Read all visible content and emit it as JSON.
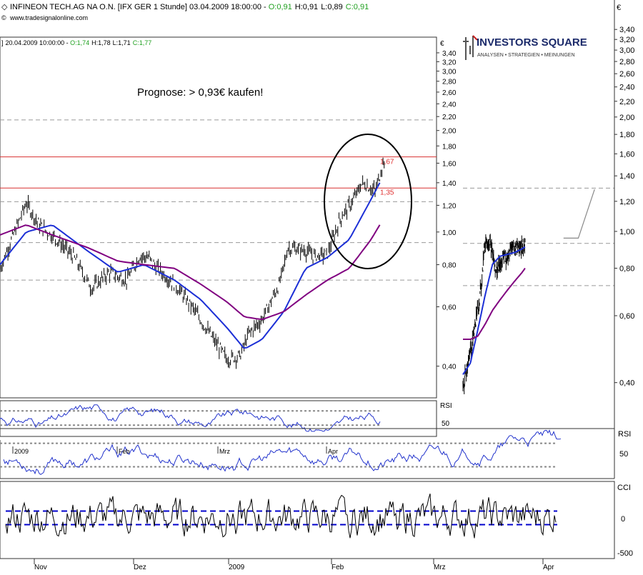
{
  "header": {
    "title": "INFINEON TECH.AG NA O.N. [IFX GER  1 Stunde] 03.04.2009 18:00:00 - ",
    "o": "O:0,91",
    "h": "H:0,91",
    "l": "L:0,89",
    "c": "C:0,91",
    "source": "www.tradesignalonline.com",
    "currency": "€"
  },
  "logo": {
    "name": "INVESTORS SQUARE",
    "tagline": "ANALYSEN • STRATEGIEN • MEINUNGEN"
  },
  "colors": {
    "price": "#000000",
    "ma_fast": "#1c2fd6",
    "ma_slow": "#800080",
    "hline": "#d83030",
    "level_label": "#e03030",
    "open_label": "#20a020",
    "close_label": "#20a020",
    "rsi": "#2233cc",
    "cci_band": "#0000cc",
    "dashed": "#999999"
  },
  "chart_data": [
    {
      "type": "line",
      "id": "main-hourly",
      "scale": "log",
      "ylim": [
        0.35,
        3.5
      ],
      "yticks": [
        "3,40",
        "3,20",
        "3,00",
        "2,80",
        "2,60",
        "2,40",
        "2,20",
        "2,00",
        "1,80",
        "1,60",
        "1,40",
        "1,20",
        "1,00",
        "0,80",
        "0,60",
        "0,40"
      ],
      "xticks": [
        "Nov",
        "Dez",
        "2009",
        "Feb",
        "Mrz",
        "Apr"
      ],
      "series": [
        {
          "kind": "price",
          "x": [
            0,
            0.04,
            0.06,
            0.09,
            0.13,
            0.17,
            0.21,
            0.25,
            0.29,
            0.32,
            0.34,
            0.36,
            0.4,
            0.44,
            0.48,
            0.52,
            0.55,
            0.57,
            0.6,
            0.64,
            0.66,
            0.7,
            0.72,
            0.75,
            0.78,
            0.81,
            0.83,
            0.86,
            0.88
          ],
          "values": [
            0.78,
            1.05,
            1.22,
            1.05,
            0.95,
            0.84,
            0.68,
            0.76,
            0.72,
            0.85,
            0.84,
            0.78,
            0.7,
            0.6,
            0.5,
            0.42,
            0.43,
            0.5,
            0.55,
            0.7,
            0.9,
            0.88,
            0.85,
            0.86,
            1.1,
            1.25,
            1.4,
            1.32,
            1.65
          ]
        },
        {
          "kind": "ma_fast",
          "x": [
            0,
            0.06,
            0.12,
            0.2,
            0.27,
            0.33,
            0.4,
            0.46,
            0.52,
            0.56,
            0.6,
            0.65,
            0.7,
            0.75,
            0.8,
            0.85,
            0.87
          ],
          "values": [
            0.8,
            1.0,
            1.05,
            0.88,
            0.76,
            0.8,
            0.72,
            0.63,
            0.52,
            0.45,
            0.48,
            0.58,
            0.78,
            0.84,
            0.95,
            1.25,
            1.4
          ]
        },
        {
          "kind": "ma_slow",
          "x": [
            0,
            0.06,
            0.12,
            0.2,
            0.27,
            0.33,
            0.4,
            0.46,
            0.52,
            0.56,
            0.6,
            0.65,
            0.7,
            0.75,
            0.8,
            0.85,
            0.87
          ],
          "values": [
            0.98,
            1.05,
            0.98,
            0.9,
            0.82,
            0.8,
            0.78,
            0.7,
            0.62,
            0.56,
            0.55,
            0.58,
            0.65,
            0.72,
            0.78,
            0.95,
            1.05
          ]
        }
      ],
      "levels": [
        {
          "value": 1.67,
          "label": "1,67"
        },
        {
          "value": 1.35,
          "label": "1,35"
        }
      ],
      "annotation": "Prognose: > 0,93€ kaufen!"
    },
    {
      "type": "line",
      "id": "right-projection",
      "scale": "log",
      "ylim": [
        0.36,
        3.6
      ],
      "yticks": [
        "3,40",
        "3,20",
        "3,00",
        "2,80",
        "2,60",
        "2,40",
        "2,20",
        "2,00",
        "1,80",
        "1,60",
        "1,40",
        "1,20",
        "1,00",
        "0,80",
        "0,60",
        "0,40"
      ],
      "series": [
        {
          "kind": "price",
          "x": [
            0,
            0.02,
            0.05,
            0.08,
            0.12,
            0.15,
            0.18,
            0.2,
            0.22,
            0.25,
            0.28,
            0.3,
            0.33,
            0.36,
            0.4,
            0.42
          ],
          "values": [
            0.38,
            0.43,
            0.48,
            0.56,
            0.7,
            0.94,
            0.95,
            0.88,
            0.78,
            0.82,
            0.86,
            0.83,
            0.92,
            0.9,
            0.92,
            0.91
          ]
        },
        {
          "kind": "ma_fast",
          "x": [
            0,
            0.05,
            0.1,
            0.15,
            0.2,
            0.25,
            0.3,
            0.35,
            0.4,
            0.42
          ],
          "values": [
            0.42,
            0.45,
            0.55,
            0.68,
            0.82,
            0.86,
            0.87,
            0.88,
            0.9,
            0.91
          ]
        },
        {
          "kind": "ma_slow",
          "x": [
            0,
            0.05,
            0.1,
            0.15,
            0.2,
            0.25,
            0.3,
            0.35,
            0.4,
            0.42
          ],
          "values": [
            0.52,
            0.52,
            0.53,
            0.57,
            0.62,
            0.66,
            0.7,
            0.74,
            0.78,
            0.8
          ]
        }
      ]
    },
    {
      "type": "line",
      "id": "rsi-small",
      "label": "RSI",
      "ytick": "50"
    },
    {
      "type": "line",
      "id": "rsi-wide",
      "label": "RSI",
      "ytick": "50",
      "xticks": [
        "2009",
        "Feb",
        "Mrz",
        "Apr"
      ]
    },
    {
      "type": "line",
      "id": "cci",
      "label": "CCI",
      "yticks": [
        "0",
        "-500"
      ],
      "xticks": [
        "Nov",
        "Dez",
        "2009",
        "Feb",
        "Mrz",
        "Apr"
      ]
    }
  ],
  "inner_header": {
    "date": "20.04.2009 10:00:00 - ",
    "o": "O:1,74",
    "h": "H:1,78",
    "l": "L:1,71",
    "c": "C:1,77"
  }
}
